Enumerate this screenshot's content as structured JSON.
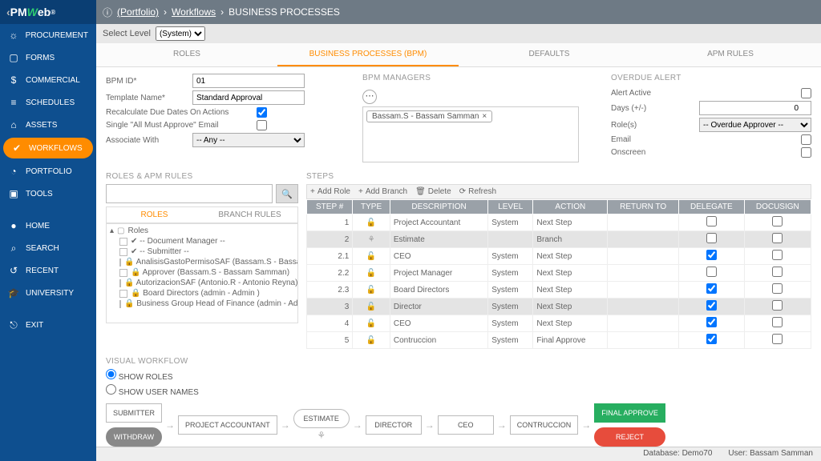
{
  "logo": {
    "pm": "PM",
    "w": "W",
    "eb": "eb",
    "reg": "®"
  },
  "breadcrumb": {
    "portfolio": "(Portfolio)",
    "workflows": "Workflows",
    "page": "BUSINESS PROCESSES"
  },
  "levelbar": {
    "label": "Select Level",
    "value": "(System)"
  },
  "sidebar": [
    {
      "id": "procurement",
      "label": "PROCUREMENT",
      "icon": "☼"
    },
    {
      "id": "forms",
      "label": "FORMS",
      "icon": "▢"
    },
    {
      "id": "commercial",
      "label": "COMMERCIAL",
      "icon": "$"
    },
    {
      "id": "schedules",
      "label": "SCHEDULES",
      "icon": "≡"
    },
    {
      "id": "assets",
      "label": "ASSETS",
      "icon": "⌂"
    },
    {
      "id": "workflows",
      "label": "WORKFLOWS",
      "icon": "✔",
      "active": true
    },
    {
      "id": "portfolio",
      "label": "PORTFOLIO",
      "icon": "◔"
    },
    {
      "id": "tools",
      "label": "TOOLS",
      "icon": "▣"
    },
    {
      "id": "home",
      "label": "HOME",
      "icon": "●"
    },
    {
      "id": "search",
      "label": "SEARCH",
      "icon": "⌕"
    },
    {
      "id": "recent",
      "label": "RECENT",
      "icon": "↺"
    },
    {
      "id": "university",
      "label": "UNIVERSITY",
      "icon": "🎓"
    },
    {
      "id": "exit",
      "label": "EXIT",
      "icon": "⎋"
    }
  ],
  "tabs": [
    "ROLES",
    "BUSINESS PROCESSES (BPM)",
    "DEFAULTS",
    "APM RULES"
  ],
  "activeTab": 1,
  "form": {
    "bpmid_label": "BPM ID*",
    "bpmid": "01",
    "template_label": "Template Name*",
    "template": "Standard Approval",
    "recalc_label": "Recalculate Due Dates On Actions",
    "recalc": true,
    "single_label": "Single \"All Must Approve\" Email",
    "single": false,
    "assoc_label": "Associate With",
    "assoc": "-- Any --"
  },
  "managers": {
    "title": "BPM MANAGERS",
    "chip": "Bassam.S - Bassam Samman"
  },
  "overdue": {
    "title": "OVERDUE ALERT",
    "active_label": "Alert Active",
    "active": false,
    "days_label": "Days (+/-)",
    "days": 0,
    "roles_label": "Role(s)",
    "roles": "-- Overdue Approver --",
    "email_label": "Email",
    "email": false,
    "onscreen_label": "Onscreen",
    "onscreen": false
  },
  "rolesPanel": {
    "title": "ROLES & APM RULES",
    "subtabs": [
      "ROLES",
      "BRANCH RULES"
    ],
    "root": "Roles",
    "items": [
      {
        "label": "-- Document Manager --",
        "check": true
      },
      {
        "label": "-- Submitter --",
        "check": true
      },
      {
        "label": "AnalisisGastoPermisoSAF (Bassam.S - Bassam Sam",
        "lock": true
      },
      {
        "label": "Approver (Bassam.S - Bassam Samman)",
        "lock": true
      },
      {
        "label": "AutorizacionSAF (Antonio.R - Antonio Reyna)",
        "lock": true
      },
      {
        "label": "Board Directors (admin - Admin )",
        "lock": true
      },
      {
        "label": "Business Group Head of Finance (admin - Admin )",
        "lock": true
      }
    ]
  },
  "stepsPanel": {
    "title": "STEPS",
    "toolbar": [
      "Add Role",
      "Add Branch",
      "Delete",
      "Refresh"
    ],
    "toolbarIcons": [
      "+",
      "+",
      "🗑",
      "⟳"
    ],
    "headers": [
      "STEP #",
      "TYPE",
      "DESCRIPTION",
      "LEVEL",
      "ACTION",
      "RETURN TO",
      "DELEGATE",
      "DOCUSIGN"
    ],
    "rows": [
      {
        "step": "1",
        "desc": "Project Accountant",
        "level": "System",
        "action": "Next Step",
        "del": false,
        "doc": false
      },
      {
        "step": "2",
        "desc": "Estimate",
        "level": "",
        "action": "Branch",
        "del": false,
        "doc": false,
        "branch": true,
        "hl": true
      },
      {
        "step": "2.1",
        "desc": "CEO",
        "level": "System",
        "action": "Next Step",
        "del": true,
        "doc": false
      },
      {
        "step": "2.2",
        "desc": "Project Manager",
        "level": "System",
        "action": "Next Step",
        "del": false,
        "doc": false
      },
      {
        "step": "2.3",
        "desc": "Board Directors",
        "level": "System",
        "action": "Next Step",
        "del": true,
        "doc": false
      },
      {
        "step": "3",
        "desc": "Director",
        "level": "System",
        "action": "Next Step",
        "del": true,
        "doc": false,
        "hl": true
      },
      {
        "step": "4",
        "desc": "CEO",
        "level": "System",
        "action": "Next Step",
        "del": true,
        "doc": false
      },
      {
        "step": "5",
        "desc": "Contruccion",
        "level": "System",
        "action": "Final Approve",
        "del": true,
        "doc": false
      }
    ]
  },
  "visual": {
    "title": "VISUAL WORKFLOW",
    "opt1": "SHOW ROLES",
    "opt2": "SHOW USER NAMES",
    "nodes": {
      "submitter": "SUBMITTER",
      "pa": "PROJECT ACCOUNTANT",
      "est": "ESTIMATE",
      "dir": "DIRECTOR",
      "ceo": "CEO",
      "con": "CONTRUCCION",
      "fa": "FINAL APPROVE",
      "withdraw": "WITHDRAW",
      "reject": "REJECT"
    }
  },
  "status": {
    "db_label": "Database:",
    "db": "Demo70",
    "user_label": "User:",
    "user": "Bassam Samman"
  }
}
